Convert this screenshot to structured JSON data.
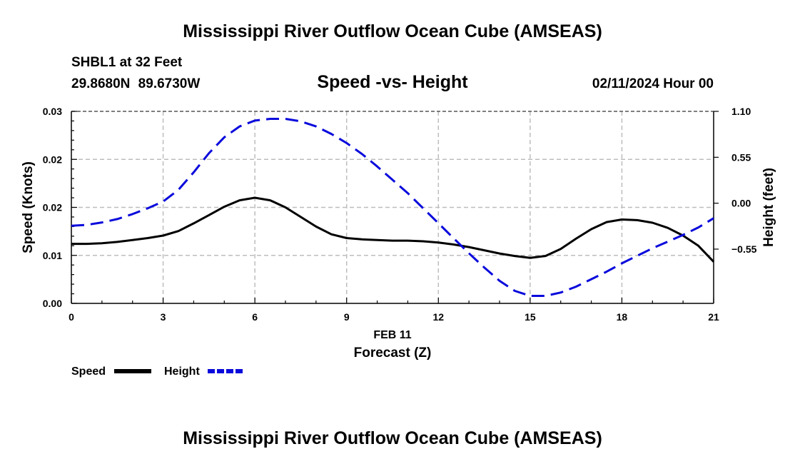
{
  "header": {
    "title": "Mississippi River Outflow Ocean Cube (AMSEAS)",
    "station": "SHBL1 at 32 Feet",
    "coords": "29.8680N  89.6730W",
    "subtitle": "Speed -vs- Height",
    "datetime": "02/11/2024 Hour 00"
  },
  "footer": {
    "title": "Mississippi River Outflow Ocean Cube (AMSEAS)"
  },
  "chart_data": {
    "type": "line",
    "title": "Speed -vs- Height",
    "xlabel": "Forecast (Z)",
    "date_label": "FEB 11",
    "ylabel_left": "Speed (Knots)",
    "ylabel_right": "Height (feet)",
    "xlim": [
      0,
      21
    ],
    "x_ticks": [
      0,
      3,
      6,
      9,
      12,
      15,
      18,
      21
    ],
    "x_tick_labels": [
      "0",
      "3",
      "6",
      "9",
      "12",
      "15",
      "18",
      "21"
    ],
    "ylim_left": [
      0,
      0.03
    ],
    "y_left_ticks": [
      0,
      0.0075,
      0.015,
      0.0225,
      0.03
    ],
    "y_left_tick_labels": [
      "0.00",
      "0.01",
      "0.02",
      "0.02",
      "0.03"
    ],
    "ylim_right": [
      -1.2,
      1.1
    ],
    "y_right_ticks": [
      -0.55,
      0,
      0.55,
      1.1
    ],
    "y_right_tick_labels": [
      "−0.55",
      "0.00",
      "0.55",
      "1.10"
    ],
    "grid": true,
    "legend_placement": "bottom-left",
    "series": [
      {
        "name": "Speed",
        "axis": "left",
        "color": "#000000",
        "style": "solid",
        "x": [
          0,
          0.5,
          1,
          1.5,
          2,
          2.5,
          3,
          3.5,
          4,
          4.5,
          5,
          5.5,
          6,
          6.5,
          7,
          7.5,
          8,
          8.5,
          9,
          9.5,
          10,
          10.5,
          11,
          11.5,
          12,
          12.5,
          13,
          13.5,
          14,
          14.5,
          15,
          15.5,
          16,
          16.5,
          17,
          17.5,
          18,
          18.5,
          19,
          19.5,
          20,
          20.5,
          21
        ],
        "values": [
          0.0093,
          0.0093,
          0.0094,
          0.0096,
          0.0099,
          0.0102,
          0.0106,
          0.0113,
          0.0125,
          0.0138,
          0.0151,
          0.0161,
          0.0165,
          0.0161,
          0.015,
          0.0135,
          0.012,
          0.0108,
          0.0102,
          0.01,
          0.0099,
          0.0098,
          0.0098,
          0.0097,
          0.0095,
          0.0092,
          0.0088,
          0.0083,
          0.0078,
          0.0074,
          0.0071,
          0.0074,
          0.0085,
          0.0101,
          0.0116,
          0.0127,
          0.0131,
          0.013,
          0.0126,
          0.0118,
          0.0106,
          0.009,
          0.0065
        ]
      },
      {
        "name": "Height",
        "axis": "right",
        "color": "#0a0adc",
        "style": "dashed",
        "x": [
          0,
          0.5,
          1,
          1.5,
          2,
          2.5,
          3,
          3.5,
          4,
          4.5,
          5,
          5.5,
          6,
          6.5,
          7,
          7.5,
          8,
          8.5,
          9,
          9.5,
          10,
          10.5,
          11,
          11.5,
          12,
          12.5,
          13,
          13.5,
          14,
          14.5,
          15,
          15.5,
          16,
          16.5,
          17,
          17.5,
          18,
          18.5,
          19,
          19.5,
          20,
          20.5,
          21
        ],
        "values": [
          -0.27,
          -0.26,
          -0.23,
          -0.19,
          -0.13,
          -0.06,
          0.02,
          0.16,
          0.37,
          0.6,
          0.79,
          0.92,
          0.99,
          1.01,
          1.01,
          0.98,
          0.92,
          0.83,
          0.72,
          0.59,
          0.44,
          0.28,
          0.12,
          -0.06,
          -0.24,
          -0.42,
          -0.6,
          -0.77,
          -0.93,
          -1.05,
          -1.11,
          -1.11,
          -1.07,
          -1.0,
          -0.91,
          -0.82,
          -0.72,
          -0.63,
          -0.54,
          -0.46,
          -0.38,
          -0.29,
          -0.18
        ]
      }
    ]
  }
}
